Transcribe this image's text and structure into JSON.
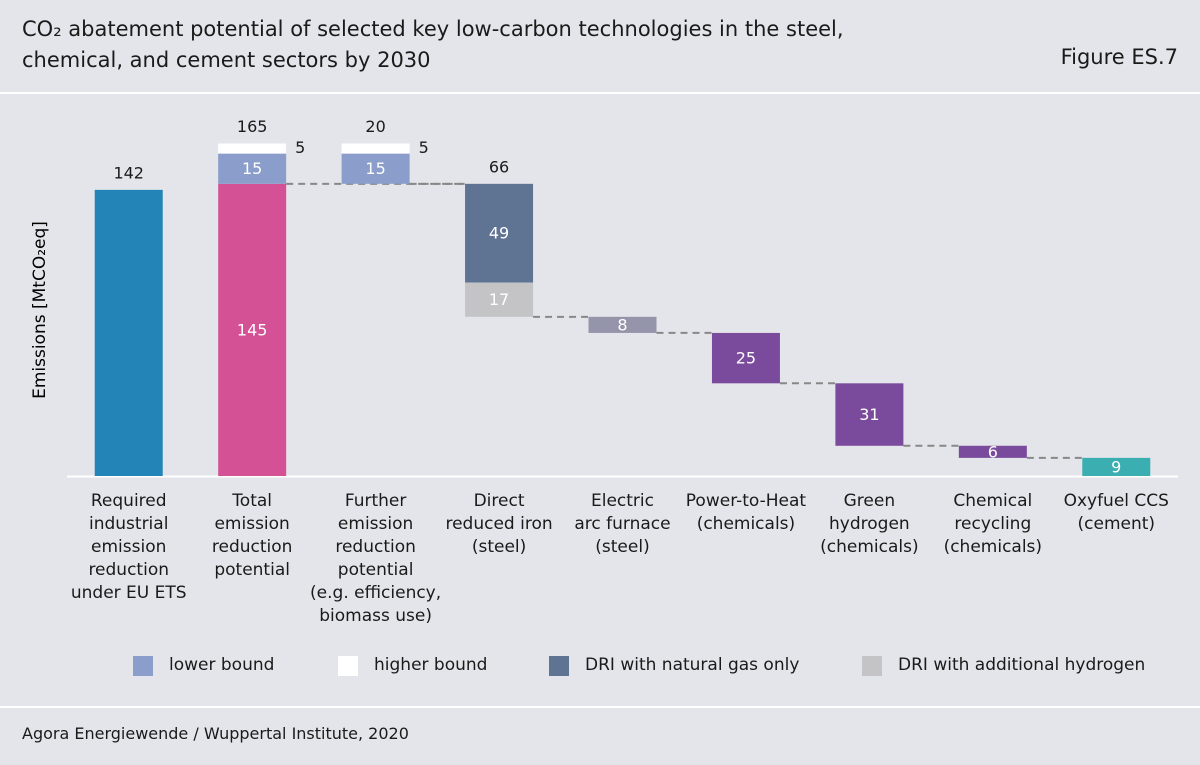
{
  "chart_data": {
    "type": "waterfall",
    "title": "CO₂ abatement potential of selected key low-carbon technologies in the steel,\nchemical, and cement sectors by 2030",
    "figure_label": "Figure ES.7",
    "y_label": "Emissions [MtCO₂eq]",
    "source": "Agora Energiewende / Wuppertal Institute, 2020",
    "bars": [
      {
        "category": "Required\nindustrial\nemission\nreduction\nunder EU ETS",
        "measure": "absolute",
        "total": 142,
        "segments": [
          {
            "value": 142,
            "color": "#2384b8",
            "label": "none"
          }
        ]
      },
      {
        "category": "Total\nemission\nreduction\npotential",
        "measure": "absolute",
        "total": 165,
        "segments": [
          {
            "value": 145,
            "color": "#d45195",
            "label": "inside"
          },
          {
            "value": 15,
            "color": "#8b9dcb",
            "label": "inside"
          },
          {
            "value": 5,
            "color": "#ffffff",
            "label": "right"
          }
        ]
      },
      {
        "category": "Further\nemission\nreduction\npotential\n(e.g. efficiency,\nbiomass use)",
        "measure": "relative-up",
        "total": 20,
        "segments": [
          {
            "value": 15,
            "color": "#8b9dcb",
            "label": "inside"
          },
          {
            "value": 5,
            "color": "#ffffff",
            "label": "right"
          }
        ]
      },
      {
        "category": "Direct\nreduced iron\n(steel)",
        "measure": "relative-down",
        "total": 66,
        "segments": [
          {
            "value": 49,
            "color": "#5f7393",
            "label": "inside"
          },
          {
            "value": 17,
            "color": "#c4c4c6",
            "label": "inside"
          }
        ]
      },
      {
        "category": "Electric\narc furnace\n(steel)",
        "measure": "relative-down",
        "segments": [
          {
            "value": 8,
            "color": "#9495ab",
            "label": "inside"
          }
        ]
      },
      {
        "category": "Power-to-Heat\n(chemicals)",
        "measure": "relative-down",
        "segments": [
          {
            "value": 25,
            "color": "#7a4a9c",
            "label": "inside"
          }
        ]
      },
      {
        "category": "Green\nhydrogen\n(chemicals)",
        "measure": "relative-down",
        "segments": [
          {
            "value": 31,
            "color": "#7a4a9c",
            "label": "inside"
          }
        ]
      },
      {
        "category": "Chemical\nrecycling\n(chemicals)",
        "measure": "relative-down",
        "segments": [
          {
            "value": 6,
            "color": "#7a4a9c",
            "label": "inside"
          }
        ]
      },
      {
        "category": "Oxyfuel CCS\n(cement)",
        "measure": "relative-down",
        "segments": [
          {
            "value": 9,
            "color": "#3aaeb0",
            "label": "inside"
          }
        ]
      }
    ],
    "legend": [
      {
        "name": "lower bound",
        "color": "#8b9dcb"
      },
      {
        "name": "higher bound",
        "color": "#ffffff"
      },
      {
        "name": "DRI with natural gas only",
        "color": "#5f7393"
      },
      {
        "name": "DRI with additional hydrogen",
        "color": "#c4c4c6"
      }
    ]
  }
}
